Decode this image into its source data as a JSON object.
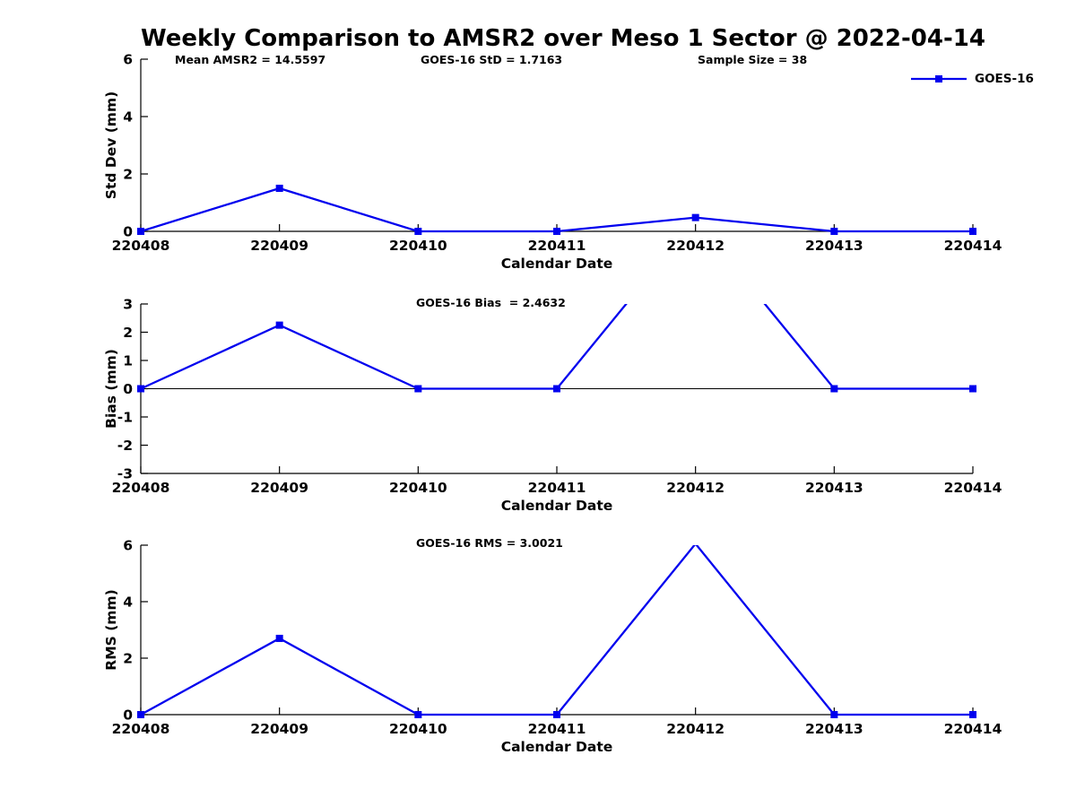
{
  "title": "Weekly Comparison to AMSR2 over Meso 1 Sector @ 2022-04-14",
  "legend": {
    "label": "GOES-16",
    "position": "top-right",
    "marker": "square"
  },
  "colors": {
    "line": "#0000EE",
    "axis": "#000000",
    "text": "#000000",
    "background": "#FFFFFF"
  },
  "chart_data": [
    {
      "type": "line",
      "panel": "std-dev",
      "categories": [
        "220408",
        "220409",
        "220410",
        "220411",
        "220412",
        "220413",
        "220414"
      ],
      "series": [
        {
          "name": "GOES-16",
          "marker": "square",
          "values": [
            0,
            1.5,
            0,
            0,
            0.48,
            0,
            0
          ]
        }
      ],
      "annotations": [
        "Mean AMSR2 = 14.5597",
        "GOES-16 StD = 1.7163",
        "Sample Size = 38"
      ],
      "xlabel": "Calendar Date",
      "ylabel": "Std Dev (mm)",
      "ylim": [
        0,
        6
      ],
      "yticks": [
        0,
        2,
        4,
        6
      ],
      "grid": false,
      "zero_line": false,
      "legend_position": "top-right"
    },
    {
      "type": "line",
      "panel": "bias",
      "categories": [
        "220408",
        "220409",
        "220410",
        "220411",
        "220412",
        "220413",
        "220414"
      ],
      "series": [
        {
          "name": "GOES-16",
          "marker": "square",
          "values": [
            0,
            2.25,
            0,
            0,
            6.0,
            0,
            0
          ]
        }
      ],
      "annotation": "GOES-16 Bias  = 2.4632",
      "xlabel": "Calendar Date",
      "ylabel": "Bias (mm)",
      "ylim": [
        -3,
        3
      ],
      "yticks": [
        -3,
        -2,
        -1,
        0,
        1,
        2,
        3
      ],
      "grid": false,
      "zero_line": true
    },
    {
      "type": "line",
      "panel": "rms",
      "categories": [
        "220408",
        "220409",
        "220410",
        "220411",
        "220412",
        "220413",
        "220414"
      ],
      "series": [
        {
          "name": "GOES-16",
          "marker": "square",
          "values": [
            0,
            2.7,
            0,
            0,
            6.05,
            0,
            0
          ]
        }
      ],
      "annotation": "GOES-16 RMS = 3.0021",
      "xlabel": "Calendar Date",
      "ylabel": "RMS (mm)",
      "ylim": [
        0,
        6
      ],
      "yticks": [
        0,
        2,
        4,
        6
      ],
      "grid": false,
      "zero_line": false
    }
  ]
}
